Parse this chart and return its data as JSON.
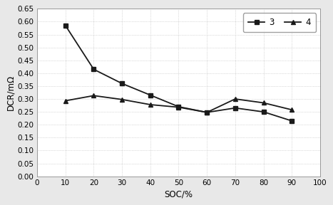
{
  "x": [
    10,
    20,
    30,
    40,
    50,
    60,
    70,
    80,
    90
  ],
  "series3": [
    0.585,
    0.415,
    0.36,
    0.315,
    0.27,
    0.248,
    0.265,
    0.25,
    0.215
  ],
  "series4": [
    0.293,
    0.313,
    0.298,
    0.278,
    0.268,
    0.248,
    0.3,
    0.285,
    0.258
  ],
  "series3_label": "3",
  "series4_label": "4",
  "xlabel": "SOC/%",
  "ylabel": "DCR/mΩ",
  "xlim": [
    0,
    100
  ],
  "ylim": [
    0.0,
    0.65
  ],
  "yticks": [
    0.0,
    0.05,
    0.1,
    0.15,
    0.2,
    0.25,
    0.3,
    0.35,
    0.4,
    0.45,
    0.5,
    0.55,
    0.6,
    0.65
  ],
  "xticks": [
    0,
    10,
    20,
    30,
    40,
    50,
    60,
    70,
    80,
    90,
    100
  ],
  "line_color": "#1a1a1a",
  "bg_color": "#ffffff",
  "plot_bg": "#ffffff",
  "grid_color": "#aaaaaa",
  "border_color": "#d0d0d0"
}
